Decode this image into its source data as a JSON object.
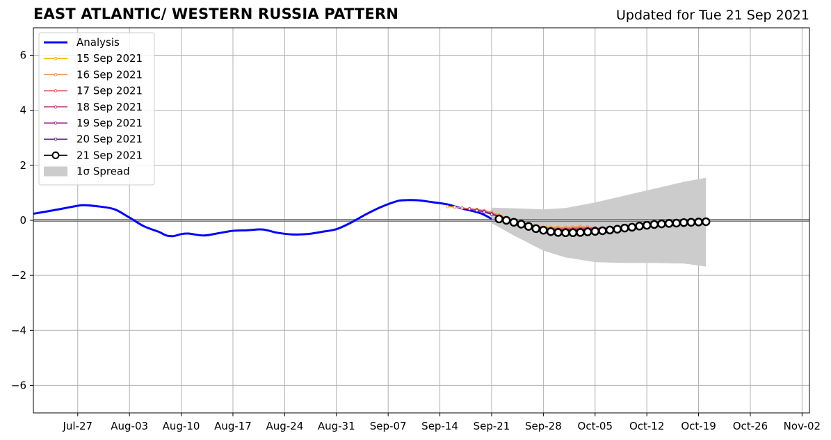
{
  "page": {
    "title": "EAST ATLANTIC/ WESTERN RUSSIA PATTERN",
    "subtitle": "Updated for Tue 21 Sep 2021"
  },
  "chart_data": {
    "type": "line",
    "title": "EAST ATLANTIC/ WESTERN RUSSIA PATTERN",
    "subtitle": "Updated for Tue 21 Sep 2021",
    "xlabel": "",
    "ylabel": "",
    "xlim": [
      "2021-07-21",
      "2021-11-03"
    ],
    "ylim": [
      -7,
      7
    ],
    "grid": true,
    "zero_line": true,
    "legend_placement": "upper-left",
    "x_ticks": [
      {
        "date": "2021-07-27",
        "label": "Jul-27"
      },
      {
        "date": "2021-08-03",
        "label": "Aug-03"
      },
      {
        "date": "2021-08-10",
        "label": "Aug-10"
      },
      {
        "date": "2021-08-17",
        "label": "Aug-17"
      },
      {
        "date": "2021-08-24",
        "label": "Aug-24"
      },
      {
        "date": "2021-08-31",
        "label": "Aug-31"
      },
      {
        "date": "2021-09-07",
        "label": "Sep-07"
      },
      {
        "date": "2021-09-14",
        "label": "Sep-14"
      },
      {
        "date": "2021-09-21",
        "label": "Sep-21"
      },
      {
        "date": "2021-09-28",
        "label": "Sep-28"
      },
      {
        "date": "2021-10-05",
        "label": "Oct-05"
      },
      {
        "date": "2021-10-12",
        "label": "Oct-12"
      },
      {
        "date": "2021-10-19",
        "label": "Oct-19"
      },
      {
        "date": "2021-10-26",
        "label": "Oct-26"
      },
      {
        "date": "2021-11-02",
        "label": "Nov-02"
      }
    ],
    "y_ticks": [
      {
        "value": 6,
        "label": "6"
      },
      {
        "value": 4,
        "label": "4"
      },
      {
        "value": 2,
        "label": "2"
      },
      {
        "value": 0,
        "label": "0"
      },
      {
        "value": -2,
        "label": "−2"
      },
      {
        "value": -4,
        "label": "−4"
      },
      {
        "value": -6,
        "label": "−6"
      }
    ],
    "analysis": {
      "name": "Analysis",
      "color": "#0000ff",
      "points": [
        [
          "2021-07-21",
          0.24
        ],
        [
          "2021-07-23",
          0.33
        ],
        [
          "2021-07-25",
          0.43
        ],
        [
          "2021-07-27",
          0.53
        ],
        [
          "2021-07-28",
          0.55
        ],
        [
          "2021-07-30",
          0.5
        ],
        [
          "2021-08-01",
          0.4
        ],
        [
          "2021-08-03",
          0.1
        ],
        [
          "2021-08-05",
          -0.22
        ],
        [
          "2021-08-07",
          -0.42
        ],
        [
          "2021-08-08",
          -0.55
        ],
        [
          "2021-08-09",
          -0.57
        ],
        [
          "2021-08-10",
          -0.5
        ],
        [
          "2021-08-11",
          -0.48
        ],
        [
          "2021-08-13",
          -0.55
        ],
        [
          "2021-08-15",
          -0.47
        ],
        [
          "2021-08-17",
          -0.38
        ],
        [
          "2021-08-19",
          -0.36
        ],
        [
          "2021-08-21",
          -0.33
        ],
        [
          "2021-08-23",
          -0.45
        ],
        [
          "2021-08-25",
          -0.51
        ],
        [
          "2021-08-27",
          -0.5
        ],
        [
          "2021-08-29",
          -0.42
        ],
        [
          "2021-08-31",
          -0.32
        ],
        [
          "2021-09-02",
          -0.08
        ],
        [
          "2021-09-04",
          0.22
        ],
        [
          "2021-09-06",
          0.48
        ],
        [
          "2021-09-08",
          0.68
        ],
        [
          "2021-09-09",
          0.73
        ],
        [
          "2021-09-11",
          0.73
        ],
        [
          "2021-09-13",
          0.66
        ],
        [
          "2021-09-15",
          0.58
        ],
        [
          "2021-09-17",
          0.43
        ],
        [
          "2021-09-19",
          0.3
        ],
        [
          "2021-09-20",
          0.2
        ],
        [
          "2021-09-21",
          0.05
        ]
      ]
    },
    "spread": {
      "name": "1σ Spread",
      "color": "#cccccc",
      "points": [
        [
          "2021-09-21",
          0.46,
          -0.1
        ],
        [
          "2021-09-24",
          0.44,
          -0.55
        ],
        [
          "2021-09-28",
          0.4,
          -1.1
        ],
        [
          "2021-10-01",
          0.45,
          -1.35
        ],
        [
          "2021-10-05",
          0.65,
          -1.52
        ],
        [
          "2021-10-09",
          0.9,
          -1.55
        ],
        [
          "2021-10-13",
          1.15,
          -1.55
        ],
        [
          "2021-10-17",
          1.4,
          -1.57
        ],
        [
          "2021-10-20",
          1.55,
          -1.68
        ]
      ]
    },
    "series": [
      {
        "name": "15 Sep 2021",
        "color": "#ffb000",
        "start": "2021-09-15",
        "values": [
          0.5,
          0.48,
          0.45,
          0.42,
          0.4,
          0.36,
          0.3,
          0.2,
          0.1,
          0.0,
          -0.08,
          -0.15,
          -0.2,
          -0.23,
          -0.25,
          -0.25,
          -0.25,
          -0.24,
          -0.22
        ]
      },
      {
        "name": "16 Sep 2021",
        "color": "#f88c3c",
        "start": "2021-09-16",
        "values": [
          0.48,
          0.45,
          0.42,
          0.39,
          0.35,
          0.28,
          0.18,
          0.08,
          -0.02,
          -0.1,
          -0.17,
          -0.22,
          -0.25,
          -0.27,
          -0.27,
          -0.26,
          -0.25,
          -0.24,
          -0.23
        ]
      },
      {
        "name": "17 Sep 2021",
        "color": "#e45a60",
        "start": "2021-09-17",
        "values": [
          0.45,
          0.42,
          0.38,
          0.33,
          0.25,
          0.15,
          0.05,
          -0.05,
          -0.13,
          -0.2,
          -0.25,
          -0.28,
          -0.3,
          -0.3,
          -0.3,
          -0.29,
          -0.28,
          -0.27,
          -0.26
        ]
      },
      {
        "name": "18 Sep 2021",
        "color": "#c8327f",
        "start": "2021-09-18",
        "values": [
          0.42,
          0.38,
          0.32,
          0.24,
          0.14,
          0.04,
          -0.06,
          -0.15,
          -0.22,
          -0.27,
          -0.31,
          -0.33,
          -0.33,
          -0.33,
          -0.32,
          -0.31,
          -0.3,
          -0.29,
          -0.28
        ]
      },
      {
        "name": "19 Sep 2021",
        "color": "#a3238f",
        "start": "2021-09-19",
        "values": [
          0.36,
          0.3,
          0.23,
          0.14,
          0.05,
          -0.04,
          -0.13,
          -0.21,
          -0.27,
          -0.31,
          -0.34,
          -0.35,
          -0.35,
          -0.34,
          -0.33,
          -0.32,
          -0.31,
          -0.3,
          -0.29
        ]
      },
      {
        "name": "20 Sep 2021",
        "color": "#5a1a98",
        "start": "2021-09-20",
        "values": [
          0.3,
          0.22,
          0.14,
          0.05,
          -0.04,
          -0.12,
          -0.2,
          -0.27,
          -0.32,
          -0.36,
          -0.38,
          -0.38,
          -0.37,
          -0.36,
          -0.34,
          -0.33,
          -0.31,
          -0.3,
          -0.29
        ]
      },
      {
        "name": "21 Sep 2021",
        "color": "#000000",
        "start": "2021-09-22",
        "values": [
          0.05,
          0.0,
          -0.07,
          -0.14,
          -0.22,
          -0.3,
          -0.36,
          -0.41,
          -0.44,
          -0.45,
          -0.45,
          -0.44,
          -0.42,
          -0.4,
          -0.38,
          -0.35,
          -0.32,
          -0.28,
          -0.25,
          -0.21,
          -0.18,
          -0.15,
          -0.13,
          -0.11,
          -0.1,
          -0.08,
          -0.07,
          -0.06,
          -0.05
        ]
      }
    ]
  }
}
